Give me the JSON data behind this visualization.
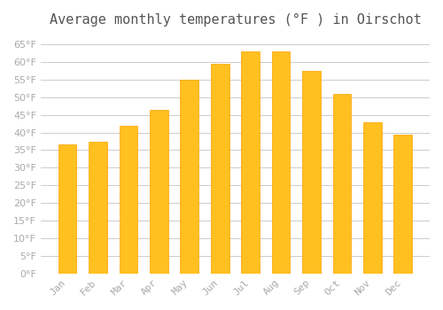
{
  "title": "Average monthly temperatures (°F ) in Oirschot",
  "months": [
    "Jan",
    "Feb",
    "Mar",
    "Apr",
    "May",
    "Jun",
    "Jul",
    "Aug",
    "Sep",
    "Oct",
    "Nov",
    "Dec"
  ],
  "values": [
    36.5,
    37.5,
    42.0,
    46.5,
    55.0,
    59.5,
    63.0,
    63.0,
    57.5,
    51.0,
    43.0,
    39.5
  ],
  "bar_color_face": "#FFC020",
  "bar_color_edge": "#FFA000",
  "background_color": "#FFFFFF",
  "grid_color": "#CCCCCC",
  "ylim": [
    0,
    68
  ],
  "yticks": [
    0,
    5,
    10,
    15,
    20,
    25,
    30,
    35,
    40,
    45,
    50,
    55,
    60,
    65
  ],
  "title_fontsize": 11,
  "tick_label_color": "#AAAAAA",
  "title_color": "#555555",
  "font_family": "monospace"
}
